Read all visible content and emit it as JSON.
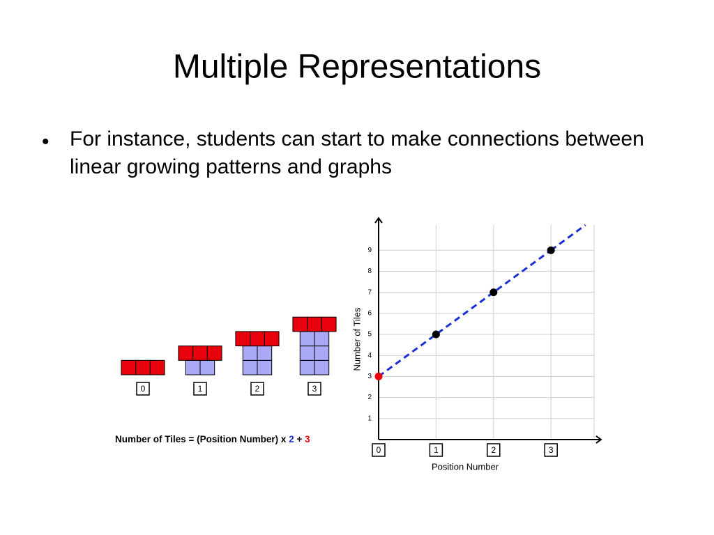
{
  "title": "Multiple Representations",
  "bullet": "For instance, students can start to make connections between linear growing patterns and graphs",
  "tile_patterns": {
    "positions": [
      "0",
      "1",
      "2",
      "3"
    ],
    "red_tiles": [
      3,
      3,
      3,
      3
    ],
    "blue_rows": [
      0,
      1,
      2,
      3
    ],
    "blue_per_row": 2,
    "red_color": "#e8000b",
    "blue_color": "#a9a9f5"
  },
  "formula": {
    "text": "Number of Tiles = (Position Number) x",
    "slope": "2",
    "plus": "+",
    "intercept": "3",
    "slope_color": "#1a2fd6",
    "intercept_color": "#e8000b"
  },
  "chart_data": {
    "type": "line",
    "x_label": "Position Number",
    "y_label": "Number of Tiles",
    "series": [
      {
        "x": [
          0,
          1,
          2,
          3
        ],
        "values": [
          3,
          5,
          7,
          9
        ],
        "color": "#1a2fd6",
        "dashed": true,
        "point_colors": [
          "#e8000b",
          "#000000",
          "#000000",
          "#000000"
        ]
      }
    ],
    "xlim": [
      0,
      3.75
    ],
    "ylim": [
      0,
      10.2
    ],
    "xticks": [
      0,
      1,
      2,
      3
    ],
    "yticks": [
      1,
      2,
      3,
      4,
      5,
      6,
      7,
      8,
      9
    ],
    "grid": true
  }
}
